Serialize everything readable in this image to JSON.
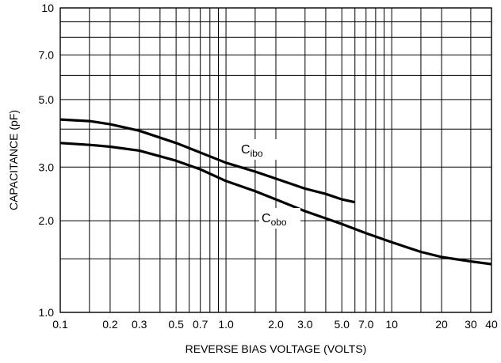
{
  "chart_data": {
    "type": "line",
    "xlabel": "REVERSE BIAS VOLTAGE (VOLTS)",
    "ylabel": "CAPACITANCE (pF)",
    "xscale": "log",
    "yscale": "log",
    "xlim": [
      0.1,
      40
    ],
    "ylim": [
      1.0,
      10
    ],
    "grid": true,
    "x_ticks": [
      {
        "v": 0.1,
        "label": "0.1"
      },
      {
        "v": 0.2,
        "label": "0.2"
      },
      {
        "v": 0.3,
        "label": "0.3"
      },
      {
        "v": 0.5,
        "label": "0.5"
      },
      {
        "v": 0.7,
        "label": "0.7"
      },
      {
        "v": 1.0,
        "label": "1.0"
      },
      {
        "v": 2.0,
        "label": "2.0"
      },
      {
        "v": 3.0,
        "label": "3.0"
      },
      {
        "v": 5.0,
        "label": "5.0"
      },
      {
        "v": 7.0,
        "label": "7.0"
      },
      {
        "v": 10,
        "label": "10"
      },
      {
        "v": 20,
        "label": "20"
      },
      {
        "v": 30,
        "label": "30"
      },
      {
        "v": 40,
        "label": "40"
      }
    ],
    "y_ticks": [
      {
        "v": 1.0,
        "label": "1.0"
      },
      {
        "v": 2.0,
        "label": "2.0"
      },
      {
        "v": 3.0,
        "label": "3.0"
      },
      {
        "v": 5.0,
        "label": "5.0"
      },
      {
        "v": 7.0,
        "label": "7.0"
      },
      {
        "v": 10,
        "label": "10"
      }
    ],
    "x_grid": [
      0.1,
      0.15,
      0.2,
      0.3,
      0.4,
      0.5,
      0.6,
      0.7,
      0.8,
      0.9,
      1.0,
      1.5,
      2.0,
      3.0,
      4.0,
      5.0,
      6.0,
      7.0,
      8.0,
      9.0,
      10,
      15,
      20,
      30,
      40
    ],
    "y_grid": [
      1.0,
      1.5,
      2.0,
      3.0,
      4.0,
      5.0,
      6.0,
      7.0,
      8.0,
      9.0,
      10
    ],
    "series": [
      {
        "name": "Cibo",
        "label_main": "C",
        "label_sub": "ibo",
        "x": [
          0.1,
          0.15,
          0.2,
          0.3,
          0.5,
          0.7,
          1.0,
          1.5,
          2.0,
          3.0,
          4.0,
          5.0,
          6.0
        ],
        "y": [
          4.3,
          4.25,
          4.15,
          3.95,
          3.6,
          3.35,
          3.1,
          2.9,
          2.75,
          2.55,
          2.45,
          2.35,
          2.3
        ]
      },
      {
        "name": "Cobo",
        "label_main": "C",
        "label_sub": "obo",
        "x": [
          0.1,
          0.15,
          0.2,
          0.3,
          0.5,
          0.7,
          1.0,
          1.5,
          2.0,
          3.0,
          5.0,
          7.0,
          10,
          15,
          20,
          30,
          40
        ],
        "y": [
          3.6,
          3.55,
          3.5,
          3.4,
          3.15,
          2.95,
          2.7,
          2.5,
          2.35,
          2.15,
          1.95,
          1.82,
          1.7,
          1.58,
          1.52,
          1.47,
          1.44
        ]
      }
    ]
  }
}
